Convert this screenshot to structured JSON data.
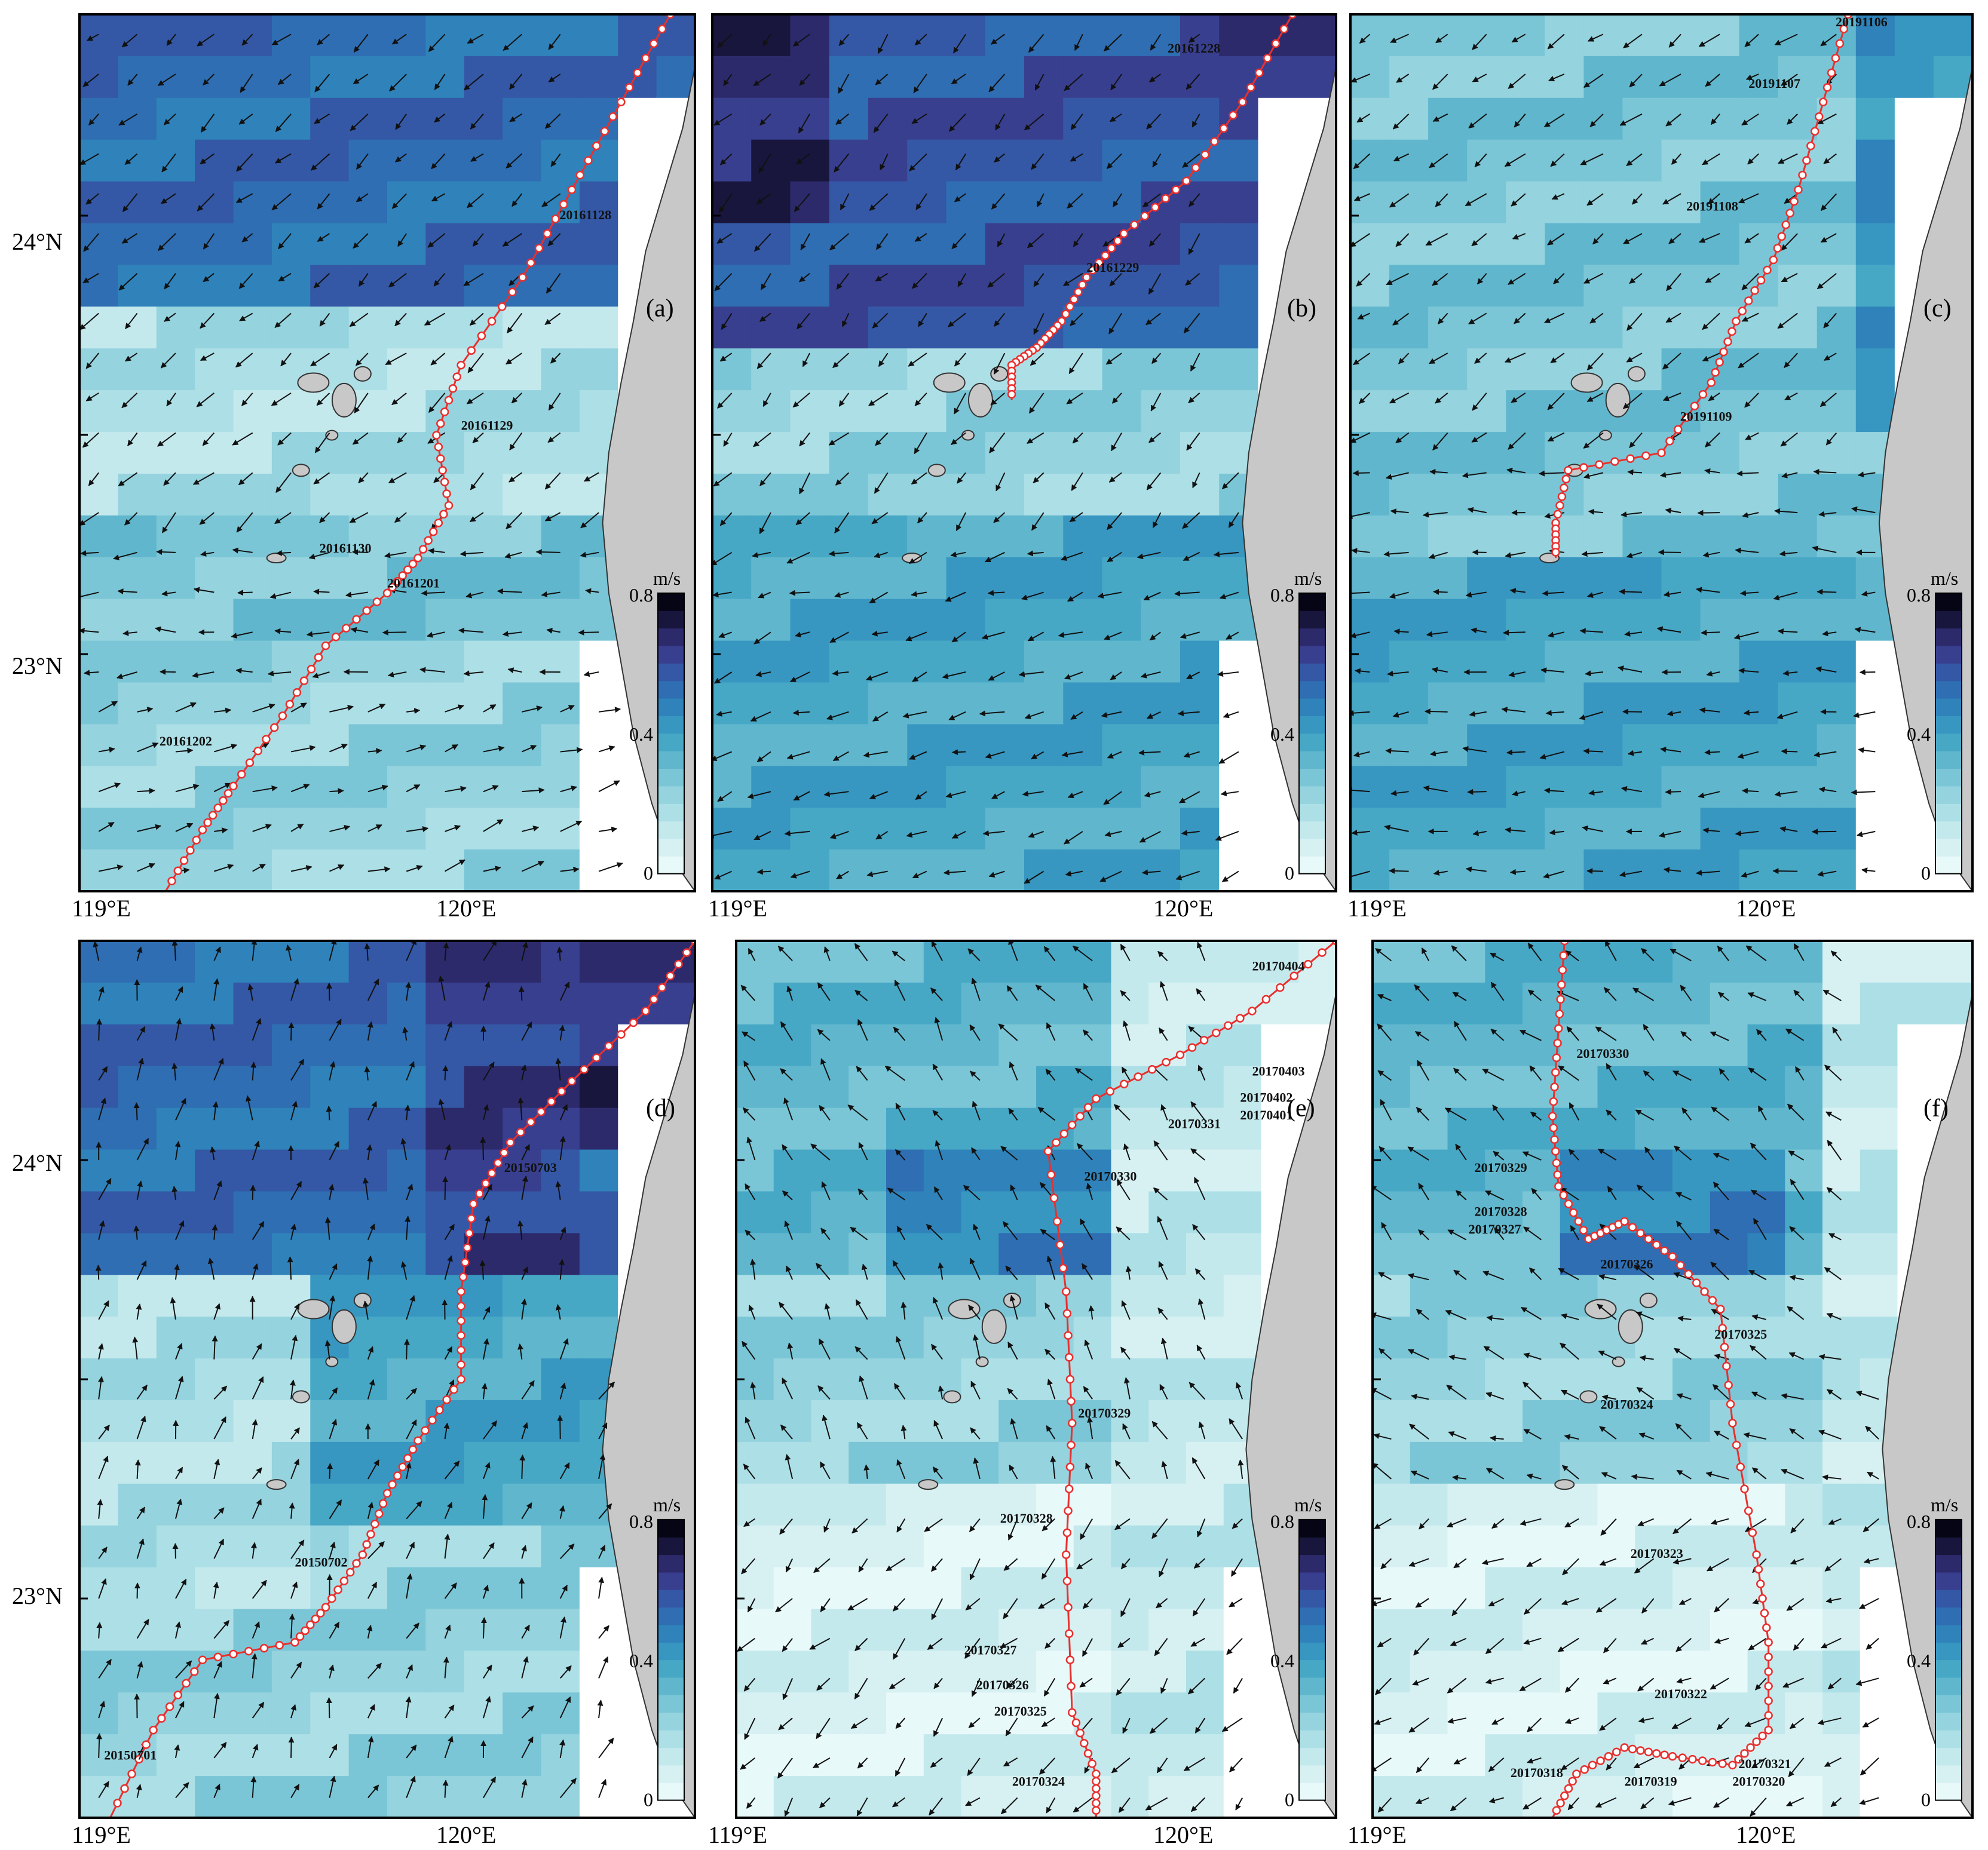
{
  "colors": {
    "speed_scale": [
      "#e8f9fa",
      "#d7f1f3",
      "#c4e9ed",
      "#addfe6",
      "#95d3de",
      "#7bc6d6",
      "#60b7cd",
      "#47a8c6",
      "#3897c1",
      "#2f83ba",
      "#2f6eb2",
      "#3458a5",
      "#393f8f",
      "#2d2a6c",
      "#18163c",
      "#050515"
    ],
    "land": "#c8c8c8",
    "track": "#e8302e",
    "arrow": "#111111"
  },
  "map": {
    "lat_ticks": [
      "24°N",
      "23°N"
    ],
    "lon_ticks": [
      "119°E",
      "120°E"
    ],
    "colorbar": {
      "unit": "m/s",
      "max": "0.8",
      "mid": "0.4",
      "min": "0"
    }
  },
  "panels": [
    {
      "id": "a",
      "letter": "(a)",
      "labels": [
        "20161128",
        "20161129",
        "20161130",
        "20161201",
        "20161202"
      ]
    },
    {
      "id": "b",
      "letter": "(b)",
      "labels": [
        "20161228",
        "20161229"
      ]
    },
    {
      "id": "c",
      "letter": "(c)",
      "labels": [
        "20191106",
        "20191107",
        "20191108",
        "20191109"
      ]
    },
    {
      "id": "d",
      "letter": "(d)",
      "labels": [
        "20150703",
        "20150702",
        "20150701"
      ]
    },
    {
      "id": "e",
      "letter": "(e)",
      "labels": [
        "20170404",
        "20170403",
        "20170402",
        "20170401",
        "20170331",
        "20170330",
        "20170329",
        "20170328",
        "20170327",
        "20170326",
        "20170325",
        "20170324"
      ]
    },
    {
      "id": "f",
      "letter": "(f)",
      "labels": [
        "20170330",
        "20170329",
        "20170328",
        "20170327",
        "20170326",
        "20170325",
        "20170324",
        "20170323",
        "20170322",
        "20170321",
        "20170320",
        "20170319",
        "20170318"
      ]
    }
  ]
}
